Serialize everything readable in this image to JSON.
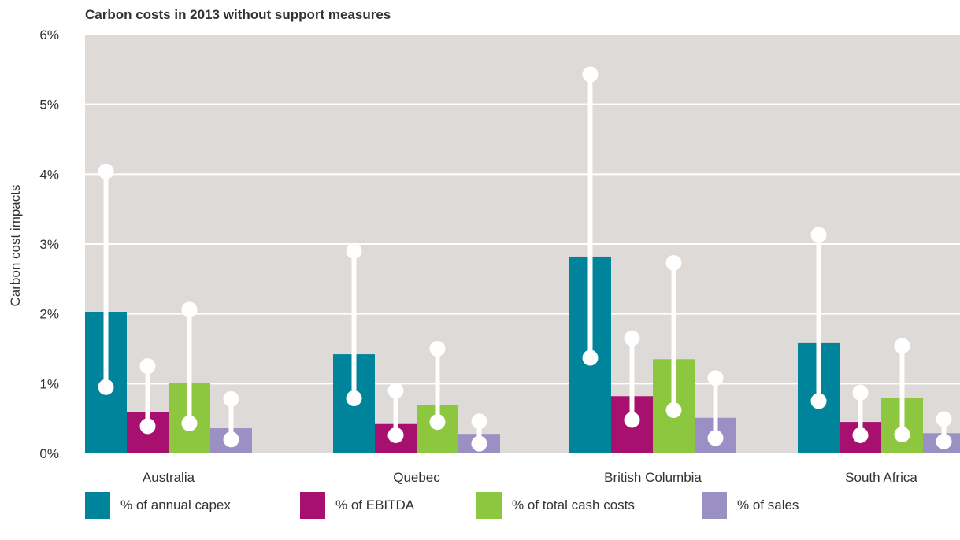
{
  "chart_data": {
    "type": "bar",
    "title": "Carbon costs in 2013 without support measures",
    "ylabel": "Carbon cost impacts",
    "xlabel": "",
    "ylim": [
      0,
      6
    ],
    "yticks": [
      "0%",
      "1%",
      "2%",
      "3%",
      "4%",
      "5%",
      "6%"
    ],
    "categories": [
      "Australia",
      "Quebec",
      "British Columbia",
      "South Africa"
    ],
    "grid": true,
    "legend_position": "bottom",
    "series": [
      {
        "name": "% of annual capex",
        "color": "#00849b",
        "values": [
          2.03,
          1.42,
          2.82,
          1.58
        ],
        "range_low": [
          0.95,
          0.79,
          1.37,
          0.75
        ],
        "range_high": [
          4.04,
          2.9,
          5.43,
          3.13
        ]
      },
      {
        "name": "% of EBITDA",
        "color": "#a7106e",
        "values": [
          0.59,
          0.42,
          0.82,
          0.45
        ],
        "range_low": [
          0.39,
          0.26,
          0.48,
          0.26
        ],
        "range_high": [
          1.25,
          0.9,
          1.65,
          0.87
        ]
      },
      {
        "name": "% of total cash costs",
        "color": "#8dc63f",
        "values": [
          1.01,
          0.69,
          1.35,
          0.79
        ],
        "range_low": [
          0.43,
          0.45,
          0.62,
          0.27
        ],
        "range_high": [
          2.06,
          1.5,
          2.73,
          1.54
        ]
      },
      {
        "name": "% of sales",
        "color": "#9b90c3",
        "values": [
          0.36,
          0.28,
          0.51,
          0.29
        ],
        "range_low": [
          0.2,
          0.14,
          0.22,
          0.17
        ],
        "range_high": [
          0.78,
          0.46,
          1.08,
          0.49
        ]
      }
    ]
  }
}
